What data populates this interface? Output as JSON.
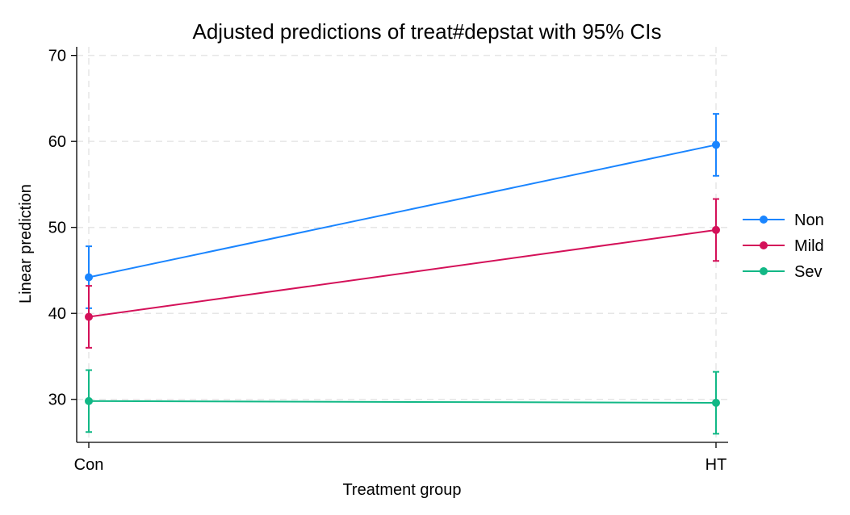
{
  "chart_data": {
    "type": "line",
    "title": "Adjusted predictions of treat#depstat with 95% CIs",
    "xlabel": "Treatment group",
    "ylabel": "Linear prediction",
    "categories": [
      "Con",
      "HT"
    ],
    "ylim": [
      25,
      71
    ],
    "yticks": [
      30,
      40,
      50,
      60,
      70
    ],
    "grid": true,
    "legend_position": "right",
    "series": [
      {
        "name": "Non",
        "color": "#1a85ff",
        "values": [
          44.2,
          59.6
        ],
        "ci_low": [
          40.6,
          56.0
        ],
        "ci_high": [
          47.8,
          63.2
        ]
      },
      {
        "name": "Mild",
        "color": "#d41159",
        "values": [
          39.6,
          49.7
        ],
        "ci_low": [
          36.0,
          46.1
        ],
        "ci_high": [
          43.2,
          53.3
        ]
      },
      {
        "name": "Sev",
        "color": "#12b886",
        "values": [
          29.8,
          29.6
        ],
        "ci_low": [
          26.2,
          26.0
        ],
        "ci_high": [
          33.4,
          33.2
        ]
      }
    ]
  }
}
